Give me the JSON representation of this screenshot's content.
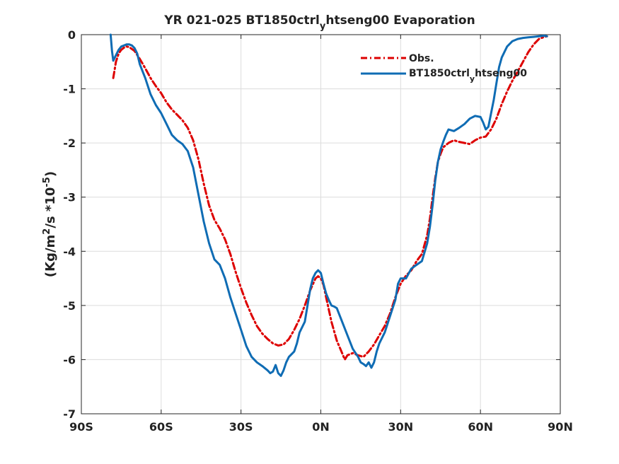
{
  "chart_data": {
    "type": "line",
    "title": "YR 021-025 BT1850ctrl_htseng00 Evaporation",
    "title_parts": {
      "before": "YR 021-025 BT1850ctrl",
      "subscript": "y",
      "after": "htseng00 Evaporation"
    },
    "ylabel": "(Kg/m²/s *10⁻⁵)",
    "ylabel_parts": {
      "a": "(Kg/m",
      "sup1": "2",
      "b": "/s *10",
      "sup2": "-5",
      "c": ")"
    },
    "xlim": [
      -90,
      90
    ],
    "ylim": [
      -7,
      0
    ],
    "x_ticks": [
      -90,
      -60,
      -30,
      0,
      30,
      60,
      90
    ],
    "x_tick_labels": [
      "90S",
      "60S",
      "30S",
      "0N",
      "30N",
      "60N",
      "90N"
    ],
    "y_ticks": [
      0,
      -1,
      -2,
      -3,
      -4,
      -5,
      -6,
      -7
    ],
    "y_tick_labels": [
      "0",
      "-1",
      "-2",
      "-3",
      "-4",
      "-5",
      "-6",
      "-7"
    ],
    "grid": true,
    "legend_position": "top-right",
    "series": [
      {
        "name": "Obs.",
        "label_parts": {
          "before": "Obs.",
          "subscript": "",
          "after": ""
        },
        "color": "#dd0000",
        "style": "dash-dot",
        "points": [
          [
            -78,
            -0.8
          ],
          [
            -77,
            -0.5
          ],
          [
            -76,
            -0.35
          ],
          [
            -75,
            -0.28
          ],
          [
            -74,
            -0.24
          ],
          [
            -73,
            -0.22
          ],
          [
            -72,
            -0.23
          ],
          [
            -70,
            -0.3
          ],
          [
            -68,
            -0.45
          ],
          [
            -66,
            -0.62
          ],
          [
            -64,
            -0.8
          ],
          [
            -62,
            -0.95
          ],
          [
            -60,
            -1.08
          ],
          [
            -58,
            -1.25
          ],
          [
            -56,
            -1.38
          ],
          [
            -54,
            -1.48
          ],
          [
            -52,
            -1.58
          ],
          [
            -50,
            -1.72
          ],
          [
            -48,
            -1.95
          ],
          [
            -46,
            -2.3
          ],
          [
            -44,
            -2.75
          ],
          [
            -42,
            -3.15
          ],
          [
            -40,
            -3.42
          ],
          [
            -38,
            -3.58
          ],
          [
            -36,
            -3.78
          ],
          [
            -34,
            -4.05
          ],
          [
            -32,
            -4.38
          ],
          [
            -30,
            -4.68
          ],
          [
            -28,
            -4.95
          ],
          [
            -26,
            -5.18
          ],
          [
            -24,
            -5.38
          ],
          [
            -22,
            -5.52
          ],
          [
            -20,
            -5.62
          ],
          [
            -18,
            -5.7
          ],
          [
            -16,
            -5.74
          ],
          [
            -14,
            -5.72
          ],
          [
            -12,
            -5.62
          ],
          [
            -10,
            -5.45
          ],
          [
            -8,
            -5.25
          ],
          [
            -6,
            -5.0
          ],
          [
            -4,
            -4.72
          ],
          [
            -2,
            -4.5
          ],
          [
            -1,
            -4.46
          ],
          [
            0,
            -4.5
          ],
          [
            1,
            -4.62
          ],
          [
            2,
            -4.85
          ],
          [
            4,
            -5.3
          ],
          [
            6,
            -5.65
          ],
          [
            8,
            -5.88
          ],
          [
            9,
            -6.0
          ],
          [
            10,
            -5.92
          ],
          [
            12,
            -5.88
          ],
          [
            14,
            -5.92
          ],
          [
            16,
            -5.95
          ],
          [
            18,
            -5.85
          ],
          [
            20,
            -5.72
          ],
          [
            22,
            -5.55
          ],
          [
            24,
            -5.38
          ],
          [
            26,
            -5.15
          ],
          [
            28,
            -4.85
          ],
          [
            30,
            -4.6
          ],
          [
            32,
            -4.45
          ],
          [
            34,
            -4.35
          ],
          [
            36,
            -4.18
          ],
          [
            38,
            -4.05
          ],
          [
            40,
            -3.7
          ],
          [
            41,
            -3.4
          ],
          [
            42,
            -3.0
          ],
          [
            43,
            -2.65
          ],
          [
            44,
            -2.35
          ],
          [
            45,
            -2.2
          ],
          [
            46,
            -2.08
          ],
          [
            48,
            -2.0
          ],
          [
            50,
            -1.95
          ],
          [
            52,
            -1.98
          ],
          [
            54,
            -2.0
          ],
          [
            56,
            -2.02
          ],
          [
            58,
            -1.95
          ],
          [
            60,
            -1.9
          ],
          [
            62,
            -1.88
          ],
          [
            64,
            -1.75
          ],
          [
            66,
            -1.55
          ],
          [
            68,
            -1.28
          ],
          [
            70,
            -1.05
          ],
          [
            72,
            -0.85
          ],
          [
            74,
            -0.68
          ],
          [
            76,
            -0.5
          ],
          [
            78,
            -0.32
          ],
          [
            80,
            -0.18
          ],
          [
            82,
            -0.08
          ],
          [
            84,
            -0.04
          ],
          [
            85,
            -0.03
          ]
        ]
      },
      {
        "name": "BT1850ctrl_htseng00",
        "label_parts": {
          "before": "BT1850ctrl",
          "subscript": "y",
          "after": "htseng00"
        },
        "color": "#0f6cb4",
        "style": "solid",
        "points": [
          [
            -79,
            0.0
          ],
          [
            -78.5,
            -0.3
          ],
          [
            -78,
            -0.48
          ],
          [
            -77,
            -0.38
          ],
          [
            -76,
            -0.28
          ],
          [
            -75,
            -0.22
          ],
          [
            -74,
            -0.2
          ],
          [
            -73,
            -0.18
          ],
          [
            -72,
            -0.18
          ],
          [
            -71,
            -0.2
          ],
          [
            -70,
            -0.25
          ],
          [
            -69,
            -0.35
          ],
          [
            -68,
            -0.55
          ],
          [
            -66,
            -0.8
          ],
          [
            -64,
            -1.1
          ],
          [
            -62,
            -1.3
          ],
          [
            -60,
            -1.45
          ],
          [
            -58,
            -1.65
          ],
          [
            -56,
            -1.85
          ],
          [
            -54,
            -1.95
          ],
          [
            -52,
            -2.02
          ],
          [
            -50,
            -2.15
          ],
          [
            -48,
            -2.45
          ],
          [
            -46,
            -2.95
          ],
          [
            -44,
            -3.45
          ],
          [
            -42,
            -3.85
          ],
          [
            -40,
            -4.15
          ],
          [
            -38,
            -4.25
          ],
          [
            -36,
            -4.5
          ],
          [
            -34,
            -4.85
          ],
          [
            -32,
            -5.15
          ],
          [
            -30,
            -5.45
          ],
          [
            -28,
            -5.75
          ],
          [
            -26,
            -5.95
          ],
          [
            -24,
            -6.05
          ],
          [
            -22,
            -6.12
          ],
          [
            -20,
            -6.2
          ],
          [
            -19,
            -6.25
          ],
          [
            -18,
            -6.22
          ],
          [
            -17,
            -6.1
          ],
          [
            -16,
            -6.25
          ],
          [
            -15,
            -6.3
          ],
          [
            -14,
            -6.2
          ],
          [
            -13,
            -6.05
          ],
          [
            -12,
            -5.95
          ],
          [
            -10,
            -5.85
          ],
          [
            -9,
            -5.7
          ],
          [
            -8,
            -5.5
          ],
          [
            -6,
            -5.3
          ],
          [
            -5,
            -5.0
          ],
          [
            -4,
            -4.7
          ],
          [
            -3,
            -4.5
          ],
          [
            -2,
            -4.4
          ],
          [
            -1,
            -4.35
          ],
          [
            0,
            -4.4
          ],
          [
            1,
            -4.6
          ],
          [
            2,
            -4.78
          ],
          [
            3,
            -4.9
          ],
          [
            4,
            -5.0
          ],
          [
            5,
            -5.02
          ],
          [
            6,
            -5.05
          ],
          [
            8,
            -5.3
          ],
          [
            10,
            -5.55
          ],
          [
            12,
            -5.8
          ],
          [
            14,
            -5.95
          ],
          [
            15,
            -6.05
          ],
          [
            16,
            -6.08
          ],
          [
            17,
            -6.12
          ],
          [
            18,
            -6.05
          ],
          [
            19,
            -6.15
          ],
          [
            20,
            -6.05
          ],
          [
            21,
            -5.85
          ],
          [
            22,
            -5.7
          ],
          [
            24,
            -5.5
          ],
          [
            26,
            -5.2
          ],
          [
            28,
            -4.9
          ],
          [
            29,
            -4.6
          ],
          [
            30,
            -4.5
          ],
          [
            32,
            -4.5
          ],
          [
            34,
            -4.32
          ],
          [
            36,
            -4.25
          ],
          [
            38,
            -4.18
          ],
          [
            40,
            -3.85
          ],
          [
            41,
            -3.55
          ],
          [
            42,
            -3.15
          ],
          [
            43,
            -2.7
          ],
          [
            44,
            -2.35
          ],
          [
            45,
            -2.12
          ],
          [
            46,
            -1.98
          ],
          [
            47,
            -1.85
          ],
          [
            48,
            -1.75
          ],
          [
            50,
            -1.78
          ],
          [
            52,
            -1.72
          ],
          [
            54,
            -1.65
          ],
          [
            56,
            -1.55
          ],
          [
            58,
            -1.5
          ],
          [
            60,
            -1.52
          ],
          [
            61,
            -1.62
          ],
          [
            62,
            -1.75
          ],
          [
            63,
            -1.7
          ],
          [
            64,
            -1.45
          ],
          [
            65,
            -1.2
          ],
          [
            66,
            -0.9
          ],
          [
            67,
            -0.6
          ],
          [
            68,
            -0.42
          ],
          [
            70,
            -0.22
          ],
          [
            72,
            -0.12
          ],
          [
            74,
            -0.08
          ],
          [
            76,
            -0.06
          ],
          [
            78,
            -0.05
          ],
          [
            80,
            -0.04
          ],
          [
            82,
            -0.03
          ],
          [
            84,
            -0.02
          ],
          [
            85,
            -0.03
          ]
        ]
      }
    ]
  }
}
